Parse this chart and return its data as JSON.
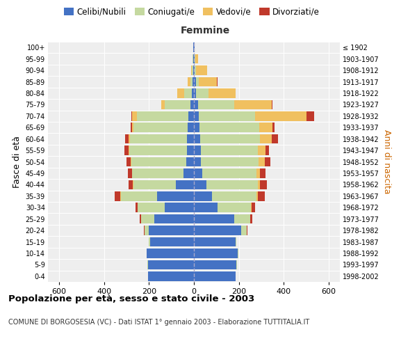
{
  "age_groups": [
    "0-4",
    "5-9",
    "10-14",
    "15-19",
    "20-24",
    "25-29",
    "30-34",
    "35-39",
    "40-44",
    "45-49",
    "50-54",
    "55-59",
    "60-64",
    "65-69",
    "70-74",
    "75-79",
    "80-84",
    "85-89",
    "90-94",
    "95-99",
    "100+"
  ],
  "birth_years": [
    "1998-2002",
    "1993-1997",
    "1988-1992",
    "1983-1987",
    "1978-1982",
    "1973-1977",
    "1968-1972",
    "1963-1967",
    "1958-1962",
    "1953-1957",
    "1948-1952",
    "1943-1947",
    "1938-1942",
    "1933-1937",
    "1928-1932",
    "1923-1927",
    "1918-1922",
    "1913-1917",
    "1908-1912",
    "1903-1907",
    "≤ 1902"
  ],
  "male_celibi": [
    205,
    205,
    210,
    195,
    200,
    175,
    130,
    165,
    80,
    45,
    35,
    32,
    30,
    28,
    25,
    15,
    8,
    5,
    4,
    3,
    2
  ],
  "male_coniugati": [
    0,
    1,
    2,
    5,
    20,
    60,
    120,
    160,
    190,
    230,
    245,
    255,
    255,
    240,
    230,
    115,
    35,
    12,
    5,
    2,
    0
  ],
  "male_vedovi": [
    0,
    0,
    0,
    0,
    1,
    1,
    1,
    2,
    2,
    2,
    2,
    3,
    5,
    8,
    20,
    15,
    30,
    12,
    4,
    1,
    0
  ],
  "male_divorziati": [
    0,
    0,
    0,
    0,
    2,
    5,
    10,
    25,
    20,
    18,
    18,
    20,
    15,
    5,
    3,
    2,
    1,
    0,
    0,
    0,
    0
  ],
  "female_celibi": [
    185,
    190,
    195,
    185,
    210,
    180,
    105,
    80,
    55,
    38,
    32,
    30,
    28,
    25,
    22,
    18,
    10,
    8,
    4,
    3,
    2
  ],
  "female_coniugati": [
    0,
    1,
    2,
    5,
    25,
    70,
    150,
    200,
    230,
    240,
    255,
    255,
    265,
    265,
    250,
    160,
    55,
    15,
    6,
    2,
    0
  ],
  "female_vedovi": [
    0,
    0,
    0,
    0,
    1,
    2,
    3,
    5,
    10,
    15,
    30,
    35,
    55,
    60,
    230,
    170,
    120,
    80,
    50,
    15,
    2
  ],
  "female_divorziati": [
    0,
    0,
    0,
    0,
    3,
    8,
    15,
    30,
    30,
    25,
    25,
    15,
    25,
    10,
    35,
    3,
    2,
    1,
    0,
    0,
    0
  ],
  "color_celibi": "#4472c4",
  "color_coniugati": "#c5d9a0",
  "color_vedovi": "#f0c060",
  "color_divorziati": "#c0392b",
  "xlim": 650,
  "title": "Popolazione per età, sesso e stato civile - 2003",
  "subtitle": "COMUNE DI BORGOSESIA (VC) - Dati ISTAT 1° gennaio 2003 - Elaborazione TUTTITALIA.IT",
  "ylabel_left": "Fasce di età",
  "ylabel_right": "Anni di nascita",
  "xlabel_right": "Femmine",
  "bg_color": "#eeeeee"
}
